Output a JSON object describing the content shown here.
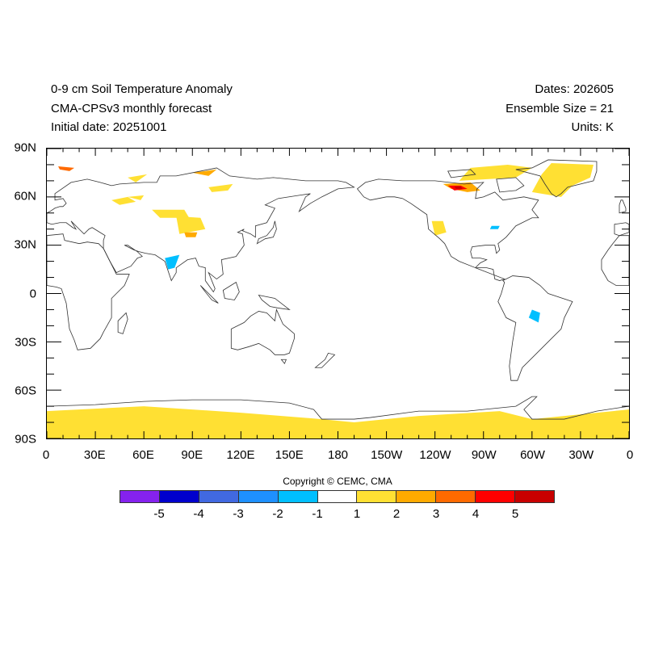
{
  "title": {
    "left": [
      "0-9 cm Soil Temperature Anomaly",
      "CMA-CPSv3 monthly forecast",
      "Initial date: 20251001"
    ],
    "right": [
      "Dates: 202605",
      "Ensemble Size = 21",
      "Units: K"
    ]
  },
  "axes": {
    "lat_labels": [
      "90N",
      "60N",
      "30N",
      "0",
      "30S",
      "60S",
      "90S"
    ],
    "lon_labels": [
      "0",
      "30E",
      "60E",
      "90E",
      "120E",
      "150E",
      "180",
      "150W",
      "120W",
      "90W",
      "60W",
      "30W",
      "0"
    ]
  },
  "copyright": "Copyright © CEMC, CMA",
  "colorbar": {
    "labels": [
      "-5",
      "-4",
      "-3",
      "-2",
      "-1",
      "1",
      "2",
      "3",
      "4",
      "5"
    ],
    "colors": [
      "#8522ee",
      "#0000cd",
      "#4169e1",
      "#1e90ff",
      "#00bfff",
      "#ffffff",
      "#ffe033",
      "#ffaa00",
      "#ff6a00",
      "#ff0000",
      "#c80000"
    ]
  }
}
